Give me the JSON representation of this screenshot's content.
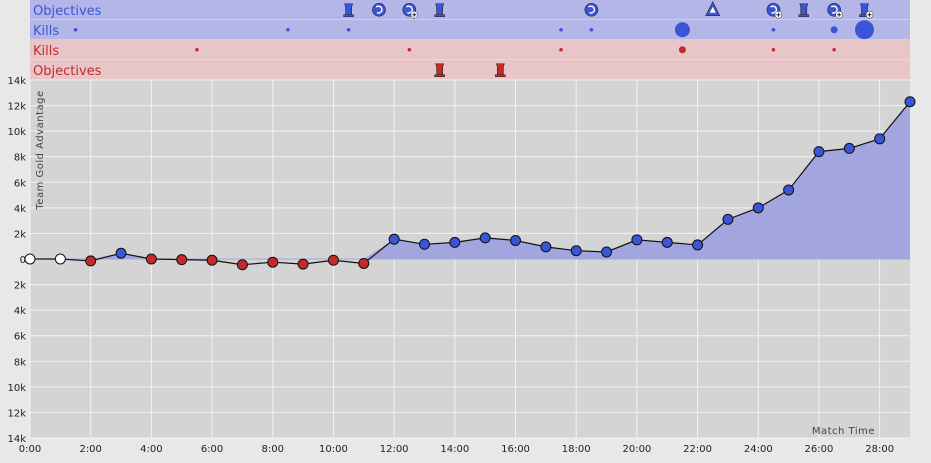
{
  "chart_data": {
    "type": "line",
    "xlabel": "Match Time",
    "ylabel": "Team Gold Advantage",
    "xlim": [
      0,
      29
    ],
    "ylim": [
      -14000,
      14000
    ],
    "x_ticks": [
      "0:00",
      "2:00",
      "4:00",
      "6:00",
      "8:00",
      "10:00",
      "12:00",
      "14:00",
      "16:00",
      "18:00",
      "20:00",
      "22:00",
      "24:00",
      "26:00",
      "28:00"
    ],
    "y_ticks": [
      "14k",
      "12k",
      "10k",
      "8k",
      "6k",
      "4k",
      "2k",
      "0",
      "2k",
      "4k",
      "6k",
      "8k",
      "10k",
      "12k",
      "14k"
    ],
    "colors": {
      "blue": "#3a55d8",
      "red": "#c42a2a",
      "neutral": "#ffffff",
      "blue_area": "#a3a6de",
      "blue_lane": "#b3b6e6",
      "red_lane": "#e8c6c8"
    },
    "series": [
      {
        "points": [
          {
            "x": 0,
            "y": 0
          },
          {
            "x": 1,
            "y": 0
          },
          {
            "x": 2,
            "y": -150
          },
          {
            "x": 3,
            "y": 450
          },
          {
            "x": 4,
            "y": 0
          },
          {
            "x": 5,
            "y": -50
          },
          {
            "x": 6,
            "y": -100
          },
          {
            "x": 7,
            "y": -450
          },
          {
            "x": 8,
            "y": -250
          },
          {
            "x": 9,
            "y": -400
          },
          {
            "x": 10,
            "y": -100
          },
          {
            "x": 11,
            "y": -350
          },
          {
            "x": 12,
            "y": 1550
          },
          {
            "x": 13,
            "y": 1150
          },
          {
            "x": 14,
            "y": 1300
          },
          {
            "x": 15,
            "y": 1650
          },
          {
            "x": 16,
            "y": 1450
          },
          {
            "x": 17,
            "y": 950
          },
          {
            "x": 18,
            "y": 650
          },
          {
            "x": 19,
            "y": 550
          },
          {
            "x": 20,
            "y": 1500
          },
          {
            "x": 21,
            "y": 1300
          },
          {
            "x": 22,
            "y": 1100
          },
          {
            "x": 23,
            "y": 3100
          },
          {
            "x": 24,
            "y": 4000
          },
          {
            "x": 25,
            "y": 5400
          },
          {
            "x": 26,
            "y": 8400
          },
          {
            "x": 27,
            "y": 8650
          },
          {
            "x": 28,
            "y": 9400
          },
          {
            "x": 29,
            "y": 12300
          }
        ]
      }
    ],
    "lanes": [
      {
        "label": "Objectives",
        "team": "blue",
        "kind": "objectives",
        "events": [
          {
            "t": 10.5,
            "icon": "tower-icon"
          },
          {
            "t": 11.5,
            "icon": "dragon-icon"
          },
          {
            "t": 12.5,
            "icon": "dragon-assist-icon"
          },
          {
            "t": 13.5,
            "icon": "tower-icon"
          },
          {
            "t": 18.5,
            "icon": "dragon-icon"
          },
          {
            "t": 22.5,
            "icon": "inhibitor-icon"
          },
          {
            "t": 24.5,
            "icon": "dragon-assist-icon"
          },
          {
            "t": 25.5,
            "icon": "tower-icon"
          },
          {
            "t": 26.5,
            "icon": "dragon-assist-icon"
          },
          {
            "t": 27.5,
            "icon": "tower-assist-icon"
          }
        ]
      },
      {
        "label": "Kills",
        "team": "blue",
        "kind": "kills",
        "events": [
          {
            "t": 1.5,
            "size": 1
          },
          {
            "t": 8.5,
            "size": 1
          },
          {
            "t": 10.5,
            "size": 1
          },
          {
            "t": 17.5,
            "size": 1
          },
          {
            "t": 18.5,
            "size": 1
          },
          {
            "t": 21.5,
            "size": 4
          },
          {
            "t": 24.5,
            "size": 1
          },
          {
            "t": 26.5,
            "size": 2
          },
          {
            "t": 27.5,
            "size": 5
          }
        ]
      },
      {
        "label": "Kills",
        "team": "red",
        "kind": "kills",
        "events": [
          {
            "t": 5.5,
            "size": 1
          },
          {
            "t": 12.5,
            "size": 1
          },
          {
            "t": 17.5,
            "size": 1
          },
          {
            "t": 21.5,
            "size": 2
          },
          {
            "t": 24.5,
            "size": 1
          },
          {
            "t": 26.5,
            "size": 1
          }
        ]
      },
      {
        "label": "Objectives",
        "team": "red",
        "kind": "objectives",
        "events": [
          {
            "t": 13.5,
            "icon": "tower-icon"
          },
          {
            "t": 15.5,
            "icon": "tower-icon"
          }
        ]
      }
    ],
    "grid": true
  }
}
